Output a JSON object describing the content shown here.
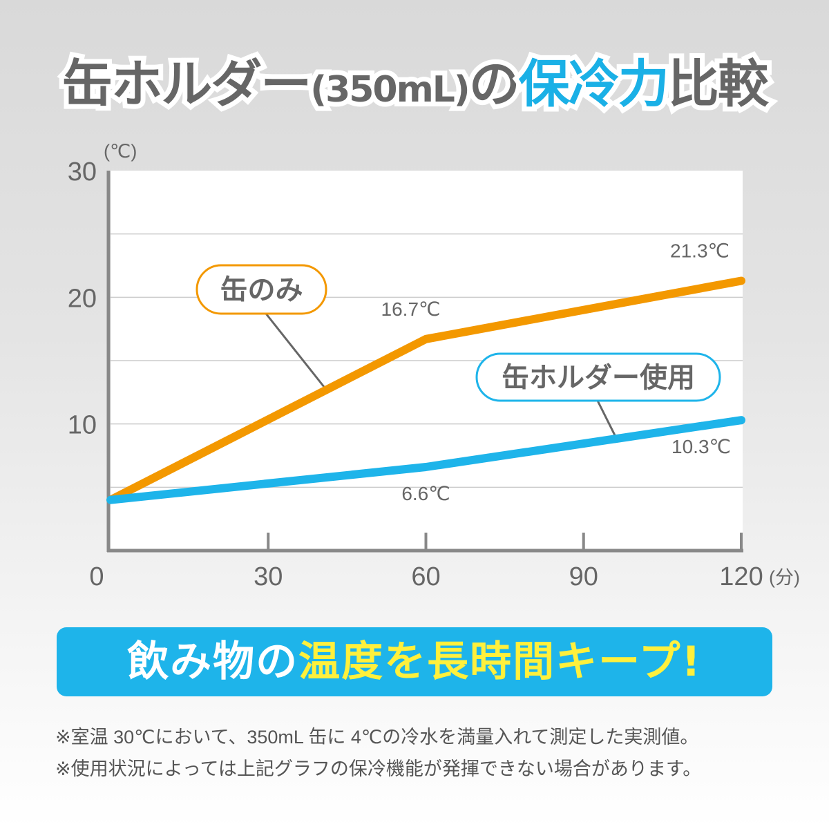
{
  "title": {
    "part1": "缶ホルダー",
    "part2": "(350mL)",
    "part3": "の",
    "highlight": "保冷力",
    "part4": "比較"
  },
  "colors": {
    "can_only": "#f39800",
    "holder": "#1eb4ea",
    "highlight": "#1ab0e6",
    "banner_bg": "#1eb4ea",
    "banner_yellow": "#fff03c"
  },
  "chart_data": {
    "type": "line",
    "xlabel": "(分)",
    "ylabel": "(℃)",
    "xlim": [
      0,
      120
    ],
    "ylim": [
      0,
      30
    ],
    "xticks": [
      "0",
      "30",
      "60",
      "90",
      "120"
    ],
    "yticks": [
      "10",
      "20",
      "30"
    ],
    "grid": true,
    "series": [
      {
        "name": "缶のみ",
        "x": [
          0,
          60,
          120
        ],
        "y": [
          4,
          16.7,
          21.3
        ],
        "color": "#f39800",
        "labels": [
          "",
          "16.7℃",
          "21.3℃"
        ]
      },
      {
        "name": "缶ホルダー使用",
        "x": [
          0,
          60,
          120
        ],
        "y": [
          4,
          6.6,
          10.3
        ],
        "color": "#1eb4ea",
        "labels": [
          "",
          "6.6℃",
          "10.3℃"
        ]
      }
    ]
  },
  "banner": {
    "white": "飲み物の",
    "yellow": "温度を長時間キープ!"
  },
  "notes": [
    "※室温 30℃において、350mL 缶に 4℃の冷水を満量入れて測定した実測値。",
    "※使用状況によっては上記グラフの保冷機能が発揮できない場合があります。"
  ]
}
